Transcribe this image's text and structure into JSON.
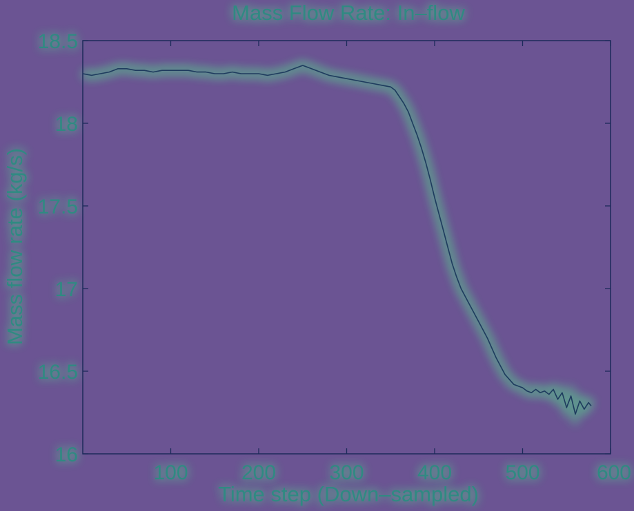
{
  "colors": {
    "background": "#6b5493",
    "axis": "#1c2a5a",
    "line": "#1e3b5e",
    "text": "#2f8a82",
    "glow": "#52e08a"
  },
  "chart_data": {
    "type": "line",
    "title": "Mass Flow Rate: In–flow",
    "xlabel": "Time step (Down–sampled)",
    "ylabel": "Mass flow rate (kg/s)",
    "xlim": [
      0,
      600
    ],
    "ylim": [
      16,
      18.5
    ],
    "xticks": [
      100,
      200,
      300,
      400,
      500,
      600
    ],
    "yticks": [
      16,
      16.5,
      17,
      17.5,
      18,
      18.5
    ],
    "xtick_labels": [
      "100",
      "200",
      "300",
      "400",
      "500",
      "600"
    ],
    "ytick_labels": [
      "16",
      "16.5",
      "17",
      "17.5",
      "18",
      "18.5"
    ],
    "grid": false,
    "series": [
      {
        "x": [
          0,
          10,
          20,
          30,
          40,
          50,
          60,
          70,
          80,
          90,
          100,
          110,
          120,
          130,
          140,
          150,
          160,
          170,
          180,
          190,
          200,
          210,
          220,
          230,
          240,
          250,
          260,
          270,
          280,
          290,
          300,
          310,
          320,
          330,
          340,
          350,
          355,
          360,
          365,
          370,
          375,
          380,
          385,
          390,
          395,
          400,
          405,
          410,
          415,
          420,
          425,
          430,
          440,
          450,
          460,
          470,
          480,
          490,
          500,
          505,
          510,
          515,
          520,
          525,
          530,
          535,
          540,
          545,
          550,
          555,
          560,
          565,
          570,
          575,
          578
        ],
        "y": [
          18.3,
          18.29,
          18.3,
          18.31,
          18.33,
          18.33,
          18.32,
          18.32,
          18.31,
          18.32,
          18.32,
          18.32,
          18.32,
          18.31,
          18.31,
          18.3,
          18.3,
          18.31,
          18.3,
          18.3,
          18.3,
          18.29,
          18.3,
          18.31,
          18.33,
          18.35,
          18.33,
          18.31,
          18.29,
          18.28,
          18.27,
          18.26,
          18.25,
          18.24,
          18.23,
          18.22,
          18.2,
          18.16,
          18.12,
          18.07,
          18.0,
          17.93,
          17.85,
          17.76,
          17.66,
          17.55,
          17.45,
          17.35,
          17.25,
          17.15,
          17.07,
          17.0,
          16.9,
          16.8,
          16.7,
          16.58,
          16.48,
          16.42,
          16.4,
          16.38,
          16.37,
          16.39,
          16.37,
          16.38,
          16.36,
          16.39,
          16.33,
          16.37,
          16.28,
          16.35,
          16.24,
          16.32,
          16.27,
          16.31,
          16.29
        ]
      }
    ]
  }
}
